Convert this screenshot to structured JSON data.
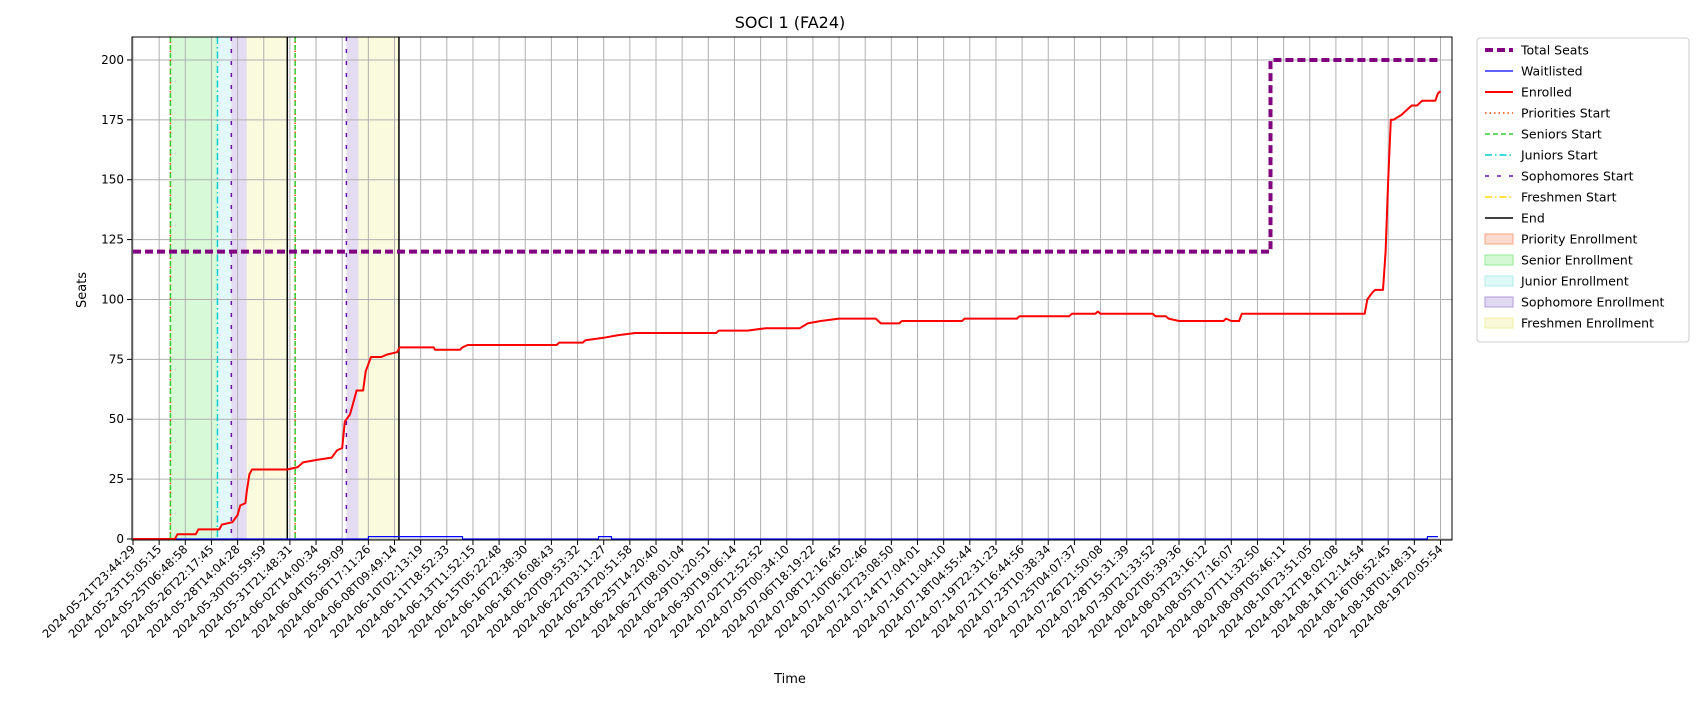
{
  "chart_data": {
    "type": "line",
    "title": "SOCI 1 (FA24)",
    "xlabel": "Time",
    "ylabel": "Seats",
    "ylim": [
      0,
      210
    ],
    "yticks": [
      0,
      25,
      50,
      75,
      100,
      125,
      150,
      175,
      200
    ],
    "grid": true,
    "legend_position": "outside-right",
    "x_tick_labels": [
      "2024-05-21T23:44:29",
      "2024-05-23T15:05:15",
      "2024-05-25T06:48:58",
      "2024-05-26T22:17:45",
      "2024-05-28T14:04:28",
      "2024-05-30T05:59:59",
      "2024-05-31T21:48:31",
      "2024-06-02T14:00:34",
      "2024-06-04T05:59:09",
      "2024-06-06T17:11:26",
      "2024-06-08T09:49:14",
      "2024-06-10T02:13:19",
      "2024-06-11T18:52:33",
      "2024-06-13T11:52:15",
      "2024-06-15T05:22:48",
      "2024-06-16T22:38:30",
      "2024-06-18T16:08:43",
      "2024-06-20T09:53:32",
      "2024-06-22T03:11:27",
      "2024-06-23T20:51:58",
      "2024-06-25T14:20:40",
      "2024-06-27T08:01:04",
      "2024-06-29T01:20:51",
      "2024-06-30T19:06:14",
      "2024-07-02T12:52:52",
      "2024-07-05T00:34:10",
      "2024-07-06T18:19:22",
      "2024-07-08T12:16:45",
      "2024-07-10T06:02:46",
      "2024-07-12T23:08:50",
      "2024-07-14T17:04:01",
      "2024-07-16T11:04:10",
      "2024-07-18T04:55:44",
      "2024-07-19T22:31:23",
      "2024-07-21T16:44:56",
      "2024-07-23T10:38:34",
      "2024-07-25T04:07:37",
      "2024-07-26T21:50:08",
      "2024-07-28T15:31:39",
      "2024-07-30T21:33:52",
      "2024-08-02T05:39:36",
      "2024-08-03T23:16:12",
      "2024-08-05T17:16:07",
      "2024-08-07T11:32:50",
      "2024-08-09T05:46:11",
      "2024-08-10T23:51:05",
      "2024-08-12T18:02:08",
      "2024-08-14T12:14:54",
      "2024-08-16T06:52:45",
      "2024-08-18T01:48:31",
      "2024-08-19T20:05:54"
    ],
    "phases": [
      {
        "name": "Senior Enrollment",
        "color": "#90ee90",
        "start": 1.43,
        "end": 3.23
      },
      {
        "name": "Junior Enrollment",
        "color": "#afeeee",
        "start": 3.23,
        "end": 3.76
      },
      {
        "name": "Sophomore Enrollment",
        "color": "#b19cd9",
        "start": 3.76,
        "end": 4.35
      },
      {
        "name": "Freshmen Enrollment",
        "color": "#f0f0a0",
        "start": 4.35,
        "end": 5.9
      },
      {
        "name": "Sophomore Enrollment",
        "color": "#b19cd9",
        "start": 8.16,
        "end": 8.62
      },
      {
        "name": "Freshmen Enrollment",
        "color": "#f0f0a0",
        "start": 8.62,
        "end": 10.17
      }
    ],
    "markers": [
      {
        "name": "Priorities Start",
        "x": 1.43
      },
      {
        "name": "Seniors Start",
        "x": 1.43
      },
      {
        "name": "Juniors Start",
        "x": 3.23
      },
      {
        "name": "Sophomores Start",
        "x": 3.76
      },
      {
        "name": "End",
        "x": 5.9
      },
      {
        "name": "Priorities Start",
        "x": 6.2
      },
      {
        "name": "Seniors Start",
        "x": 6.2
      },
      {
        "name": "Sophomores Start",
        "x": 8.16
      },
      {
        "name": "End",
        "x": 10.17
      }
    ],
    "series": [
      {
        "name": "Total Seats",
        "color": "#800080",
        "points": [
          [
            0,
            120
          ],
          [
            43.5,
            120
          ],
          [
            43.5,
            200
          ],
          [
            49.9,
            200
          ]
        ]
      },
      {
        "name": "Waitlisted",
        "color": "#0000ff",
        "points": [
          [
            0,
            0
          ],
          [
            9.0,
            0
          ],
          [
            9.0,
            1
          ],
          [
            12.6,
            1
          ],
          [
            12.6,
            0
          ],
          [
            17.8,
            0
          ],
          [
            17.8,
            1
          ],
          [
            18.3,
            1
          ],
          [
            18.3,
            0
          ],
          [
            49.5,
            0
          ],
          [
            49.5,
            1
          ],
          [
            49.9,
            1
          ]
        ]
      },
      {
        "name": "Enrolled",
        "color": "#ff0000",
        "points": [
          [
            0,
            0
          ],
          [
            1.6,
            0
          ],
          [
            1.7,
            2
          ],
          [
            2.4,
            2
          ],
          [
            2.5,
            4
          ],
          [
            3.3,
            4
          ],
          [
            3.4,
            6
          ],
          [
            3.8,
            7
          ],
          [
            4.0,
            10
          ],
          [
            4.1,
            14
          ],
          [
            4.3,
            15
          ],
          [
            4.35,
            20
          ],
          [
            4.45,
            27
          ],
          [
            4.55,
            29
          ],
          [
            5.9,
            29
          ],
          [
            6.3,
            30
          ],
          [
            6.5,
            32
          ],
          [
            7.0,
            33
          ],
          [
            7.6,
            34
          ],
          [
            7.8,
            37
          ],
          [
            8.0,
            38
          ],
          [
            8.1,
            49
          ],
          [
            8.3,
            52
          ],
          [
            8.4,
            56
          ],
          [
            8.55,
            62
          ],
          [
            8.8,
            62
          ],
          [
            8.9,
            70
          ],
          [
            9.1,
            76
          ],
          [
            9.5,
            76
          ],
          [
            9.7,
            77
          ],
          [
            10.1,
            78
          ],
          [
            10.2,
            80
          ],
          [
            11.5,
            80
          ],
          [
            11.55,
            79
          ],
          [
            12.5,
            79
          ],
          [
            12.6,
            80
          ],
          [
            12.8,
            81
          ],
          [
            16.2,
            81
          ],
          [
            16.3,
            82
          ],
          [
            17.2,
            82
          ],
          [
            17.3,
            83
          ],
          [
            18.0,
            84
          ],
          [
            18.5,
            85
          ],
          [
            19.2,
            86
          ],
          [
            22.3,
            86
          ],
          [
            22.4,
            87
          ],
          [
            23.5,
            87
          ],
          [
            24.2,
            88
          ],
          [
            25.5,
            88
          ],
          [
            25.8,
            90
          ],
          [
            26.3,
            91
          ],
          [
            27.0,
            92
          ],
          [
            28.4,
            92
          ],
          [
            28.6,
            90
          ],
          [
            29.3,
            90
          ],
          [
            29.4,
            91
          ],
          [
            31.7,
            91
          ],
          [
            31.8,
            92
          ],
          [
            33.8,
            92
          ],
          [
            33.9,
            93
          ],
          [
            35.8,
            93
          ],
          [
            35.9,
            94
          ],
          [
            36.8,
            94
          ],
          [
            36.9,
            95
          ],
          [
            37.0,
            94
          ],
          [
            39.0,
            94
          ],
          [
            39.1,
            93
          ],
          [
            39.5,
            93
          ],
          [
            39.6,
            92
          ],
          [
            40.0,
            91
          ],
          [
            41.7,
            91
          ],
          [
            41.8,
            92
          ],
          [
            42.0,
            91
          ],
          [
            42.3,
            91
          ],
          [
            42.4,
            94
          ],
          [
            47.1,
            94
          ],
          [
            47.2,
            100
          ],
          [
            47.4,
            103
          ],
          [
            47.5,
            104
          ],
          [
            47.8,
            104
          ],
          [
            47.9,
            120
          ],
          [
            48.0,
            150
          ],
          [
            48.1,
            175
          ],
          [
            48.2,
            175
          ],
          [
            48.5,
            177
          ],
          [
            48.7,
            179
          ],
          [
            48.9,
            181
          ],
          [
            49.1,
            181
          ],
          [
            49.3,
            183
          ],
          [
            49.6,
            183
          ],
          [
            49.8,
            183
          ],
          [
            49.9,
            186
          ],
          [
            50.0,
            187
          ]
        ]
      }
    ]
  },
  "legend": {
    "items": [
      {
        "label": "Total Seats",
        "kind": "line",
        "color": "#800080",
        "dash": "8,4",
        "width": 4
      },
      {
        "label": "Waitlisted",
        "kind": "line",
        "color": "#0000ff",
        "dash": "",
        "width": 1.2
      },
      {
        "label": "Enrolled",
        "kind": "line",
        "color": "#ff0000",
        "dash": "",
        "width": 2
      },
      {
        "label": "Priorities Start",
        "kind": "line",
        "color": "#ff4500",
        "dash": "1.5,3",
        "width": 1.5
      },
      {
        "label": "Seniors Start",
        "kind": "line",
        "color": "#32cd32",
        "dash": "5,3",
        "width": 1.5
      },
      {
        "label": "Juniors Start",
        "kind": "line",
        "color": "#00ced1",
        "dash": "7,3,1.5,3",
        "width": 1.5
      },
      {
        "label": "Sophomores Start",
        "kind": "line",
        "color": "#6a0dad",
        "dash": "4,8",
        "width": 1.5
      },
      {
        "label": "Freshmen Start",
        "kind": "line",
        "color": "#ffd700",
        "dash": "7,3,1.5,3",
        "width": 1.5
      },
      {
        "label": "End",
        "kind": "line",
        "color": "#000000",
        "dash": "",
        "width": 1.5
      },
      {
        "label": "Priority Enrollment",
        "kind": "patch",
        "color": "#f4a582"
      },
      {
        "label": "Senior Enrollment",
        "kind": "patch",
        "color": "#90ee90"
      },
      {
        "label": "Junior Enrollment",
        "kind": "patch",
        "color": "#afeeee"
      },
      {
        "label": "Sophomore Enrollment",
        "kind": "patch",
        "color": "#b19cd9"
      },
      {
        "label": "Freshmen Enrollment",
        "kind": "patch",
        "color": "#f0f0a0"
      }
    ]
  }
}
